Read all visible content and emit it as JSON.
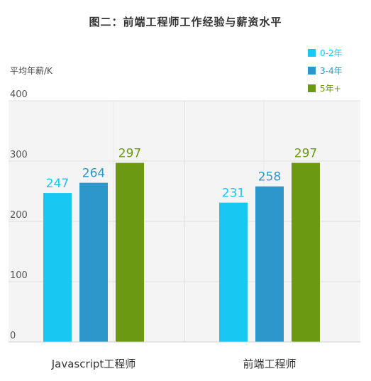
{
  "chart_data": {
    "type": "bar",
    "title": "图二：前端工程师工作经验与薪资水平",
    "ylabel": "平均年薪/K",
    "xlabel": "",
    "ylim": [
      0,
      400
    ],
    "yticks": [
      0,
      100,
      200,
      300,
      400
    ],
    "categories": [
      "Javascript工程师",
      "前端工程师"
    ],
    "series": [
      {
        "name": "0-2年",
        "values": [
          247,
          231
        ],
        "color": "#18c8f2"
      },
      {
        "name": "3-4年",
        "values": [
          264,
          258
        ],
        "color": "#2d97cb"
      },
      {
        "name": "5年+",
        "values": [
          297,
          297
        ],
        "color": "#6b9a12"
      }
    ],
    "legend_position": "top-right",
    "grid": true
  }
}
